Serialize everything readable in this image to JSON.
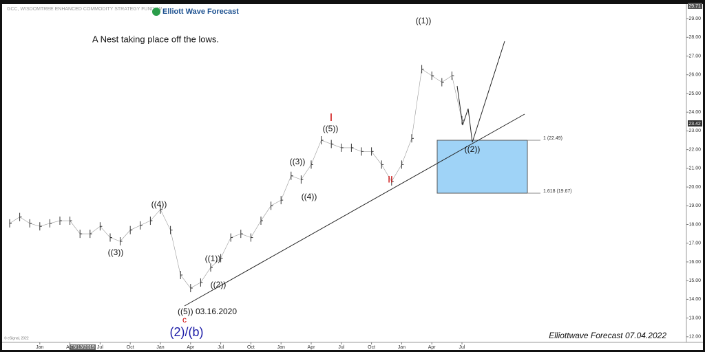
{
  "chart_data": {
    "type": "line",
    "title": "GCC, WISDOMTREE ENHANCED COMMODITY STRATEGY FUND, W",
    "brand": "Elliott Wave Forecast",
    "note": "A Nest taking place off the lows.",
    "footer": "Elliottwave Forecast  07.04.2022",
    "copyright": "© eSignal, 2022",
    "date_marker": "05/13/2019",
    "price_markers": [
      "29.71",
      "23.42"
    ],
    "fib_labels": [
      "1 (22.49)",
      "1.618 (19.67)"
    ],
    "annotations": [
      "((3))",
      "((4))",
      "((5)) 03.16.2020",
      "c",
      "(2)/(b)",
      "((1))",
      "((2))",
      "((3))",
      "((4))",
      "((5))",
      "I",
      "II",
      "((1))",
      "((2))"
    ],
    "categories": [
      null,
      null,
      null,
      "Jan",
      null,
      null,
      "Apr",
      null,
      null,
      "Jul",
      null,
      null,
      "Oct",
      null,
      null,
      "Jan",
      null,
      null,
      "Apr",
      null,
      null,
      "Jul",
      null,
      null,
      "Oct",
      null,
      null,
      "Jan",
      null,
      null,
      "Apr",
      null,
      null,
      "Jul",
      null,
      null,
      "Oct",
      null,
      null,
      "Jan",
      null,
      null,
      "Apr",
      null,
      null,
      "Jul"
    ],
    "values": [
      18.06,
      18.4,
      18.06,
      17.9,
      18.06,
      18.2,
      18.2,
      17.5,
      17.5,
      17.9,
      17.3,
      17.1,
      17.7,
      17.95,
      18.2,
      18.8,
      17.7,
      15.3,
      14.6,
      14.9,
      15.7,
      16.2,
      17.3,
      17.5,
      17.3,
      18.2,
      19.0,
      19.3,
      20.6,
      20.4,
      21.2,
      22.5,
      22.3,
      22.1,
      22.1,
      21.9,
      21.9,
      21.2,
      20.3,
      21.2,
      22.6,
      26.3,
      25.95,
      25.6,
      25.95,
      23.57
    ],
    "color": "#333333",
    "ylim": [
      11.7,
      29.7
    ],
    "yticks": [
      {
        "value": 12,
        "label": "12.00"
      },
      {
        "value": 13,
        "label": "13.00"
      },
      {
        "value": 14,
        "label": "14.00"
      },
      {
        "value": 15,
        "label": "15.00"
      },
      {
        "value": 16,
        "label": "16.00"
      },
      {
        "value": 17,
        "label": "17.00"
      },
      {
        "value": 18,
        "label": "18.00"
      },
      {
        "value": 19,
        "label": "19.00"
      },
      {
        "value": 20,
        "label": "20.00"
      },
      {
        "value": 21,
        "label": "21.00"
      },
      {
        "value": 22,
        "label": "22.00"
      },
      {
        "value": 23,
        "label": "23.00"
      },
      {
        "value": 24,
        "label": "24.00"
      },
      {
        "value": 25,
        "label": "25.00"
      },
      {
        "value": 26,
        "label": "26.00"
      },
      {
        "value": 27,
        "label": "27.00"
      },
      {
        "value": 28,
        "label": "28.00"
      },
      {
        "value": 29,
        "label": "29.00"
      }
    ],
    "grid": false
  }
}
